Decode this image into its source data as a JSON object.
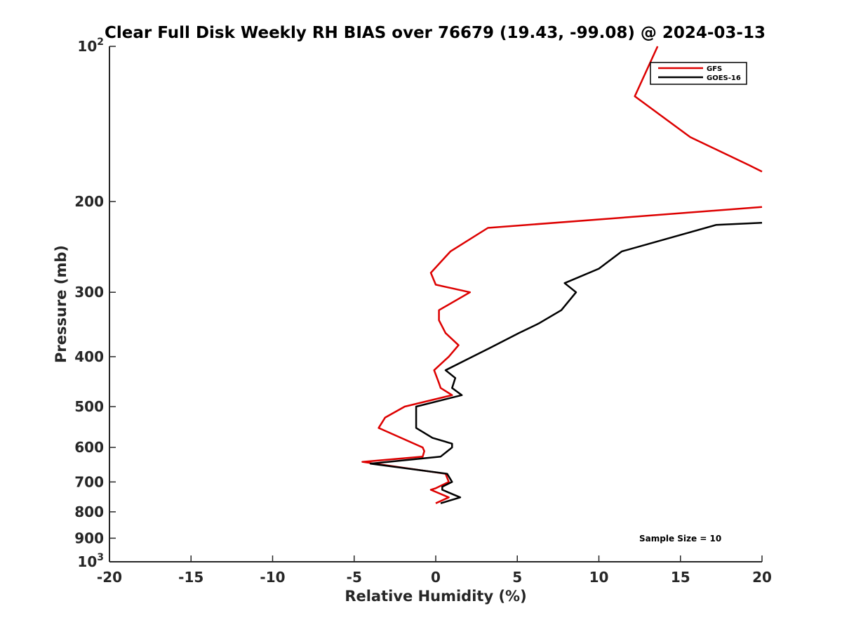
{
  "chart_data": {
    "type": "line",
    "title": "Clear Full Disk Weekly RH BIAS over 76679 (19.43, -99.08) @ 2024-03-13",
    "xlabel": "Relative Humidity (%)",
    "ylabel": "Pressure (mb)",
    "xlim": [
      -20,
      20
    ],
    "ylim": [
      100,
      1000
    ],
    "y_scale": "log",
    "y_direction": "reversed",
    "x_ticks": [
      "-20",
      "-15",
      "-10",
      "-5",
      "0",
      "5",
      "10",
      "15",
      "20"
    ],
    "y_ticks": [
      {
        "value": 100,
        "base": "10",
        "exp": "2"
      },
      {
        "value": 200,
        "label": "200"
      },
      {
        "value": 300,
        "label": "300"
      },
      {
        "value": 400,
        "label": "400"
      },
      {
        "value": 500,
        "label": "500"
      },
      {
        "value": 600,
        "label": "600"
      },
      {
        "value": 700,
        "label": "700"
      },
      {
        "value": 800,
        "label": "800"
      },
      {
        "value": 900,
        "label": "900"
      },
      {
        "value": 1000,
        "base": "10",
        "exp": "3"
      }
    ],
    "legend_position": "top-right",
    "annotation": "Sample Size = 10",
    "series": [
      {
        "name": "GFS",
        "color": "#dd0000",
        "points": [
          [
            13.6,
            100
          ],
          [
            12.2,
            125
          ],
          [
            15.6,
            150
          ],
          [
            19.2,
            170
          ],
          [
            20.0,
            175
          ],
          [
            null,
            null
          ],
          [
            20.0,
            205
          ],
          [
            3.2,
            225
          ],
          [
            0.9,
            250
          ],
          [
            -0.3,
            275
          ],
          [
            0.0,
            290
          ],
          [
            2.1,
            300
          ],
          [
            0.2,
            325
          ],
          [
            0.2,
            340
          ],
          [
            0.6,
            360
          ],
          [
            1.4,
            380
          ],
          [
            0.8,
            400
          ],
          [
            -0.1,
            425
          ],
          [
            0.2,
            450
          ],
          [
            0.3,
            460
          ],
          [
            1.0,
            475
          ],
          [
            -1.9,
            500
          ],
          [
            -3.1,
            525
          ],
          [
            -3.5,
            550
          ],
          [
            -0.8,
            600
          ],
          [
            -0.7,
            610
          ],
          [
            -0.8,
            625
          ],
          [
            -4.5,
            640
          ],
          [
            0.6,
            675
          ],
          [
            0.8,
            700
          ],
          [
            0.0,
            720
          ],
          [
            -0.3,
            725
          ],
          [
            0.8,
            750
          ],
          [
            0.0,
            770
          ]
        ]
      },
      {
        "name": "GOES-16",
        "color": "#000000",
        "points": [
          [
            20.0,
            220
          ],
          [
            17.2,
            222
          ],
          [
            11.4,
            250
          ],
          [
            10.0,
            270
          ],
          [
            7.9,
            288
          ],
          [
            8.6,
            300
          ],
          [
            7.7,
            325
          ],
          [
            6.3,
            345
          ],
          [
            5.1,
            360
          ],
          [
            3.3,
            385
          ],
          [
            0.6,
            425
          ],
          [
            1.2,
            440
          ],
          [
            1.0,
            460
          ],
          [
            1.6,
            475
          ],
          [
            -1.2,
            500
          ],
          [
            -1.2,
            525
          ],
          [
            -1.2,
            550
          ],
          [
            -0.2,
            575
          ],
          [
            1.0,
            590
          ],
          [
            1.0,
            600
          ],
          [
            0.3,
            625
          ],
          [
            -4.0,
            645
          ],
          [
            0.7,
            675
          ],
          [
            1.0,
            700
          ],
          [
            0.4,
            715
          ],
          [
            0.4,
            725
          ],
          [
            1.5,
            750
          ],
          [
            0.3,
            770
          ]
        ]
      }
    ]
  }
}
